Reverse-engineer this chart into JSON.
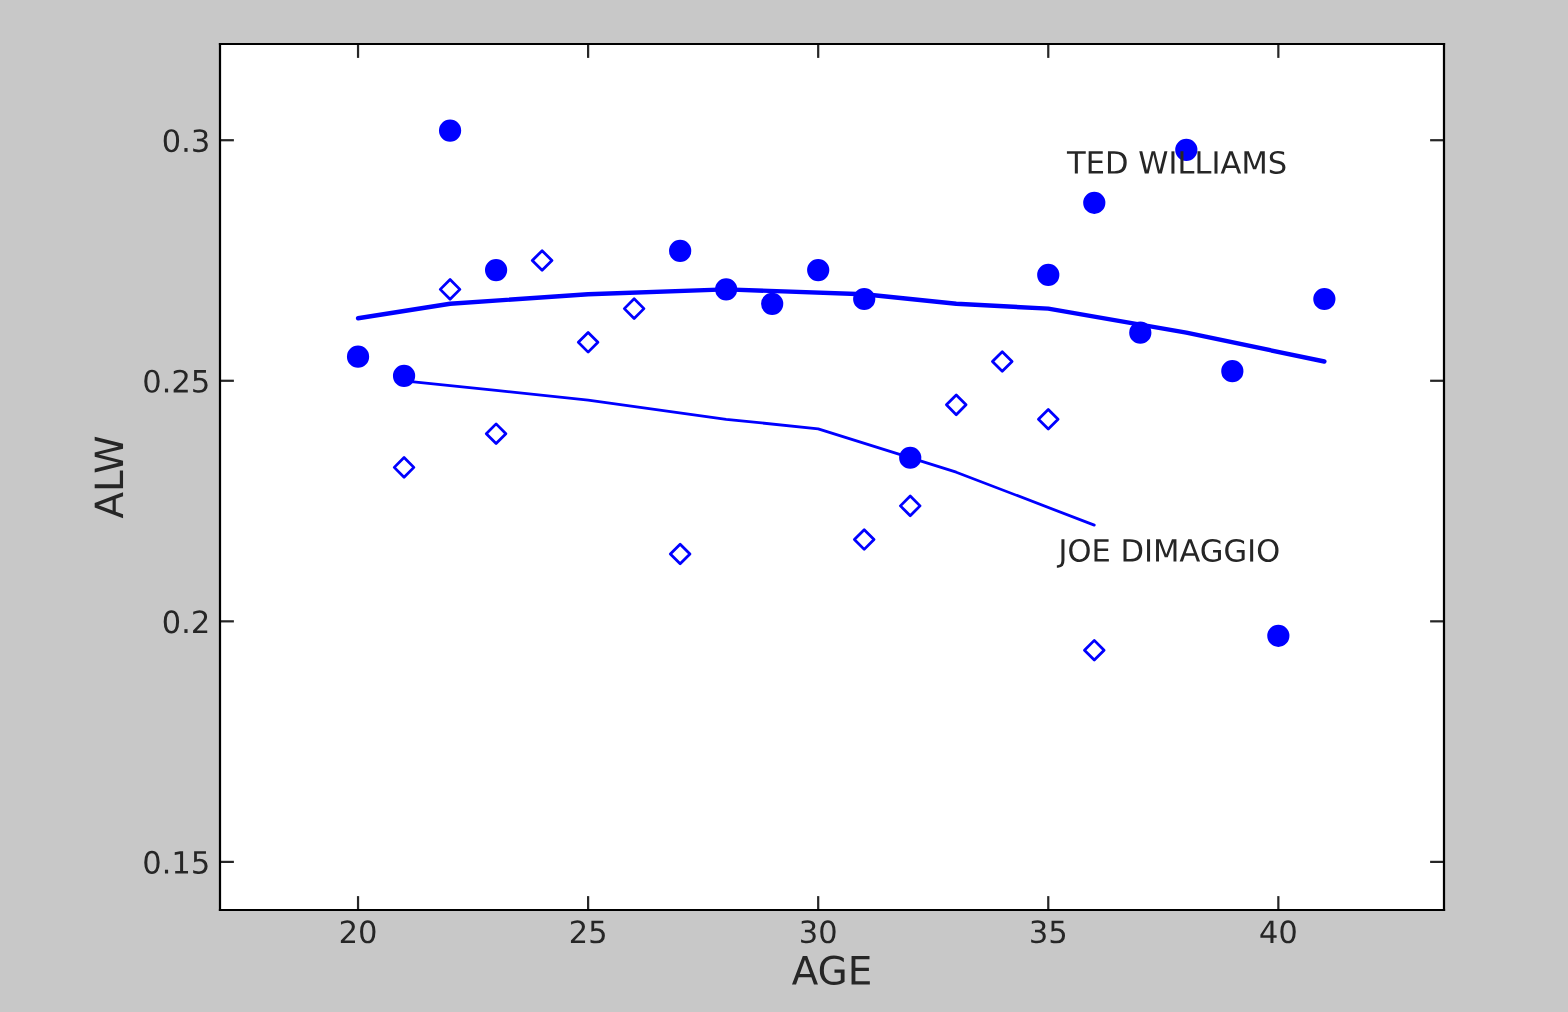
{
  "chart_data": {
    "type": "scatter",
    "xlabel": "AGE",
    "ylabel": "ALW",
    "xlim": [
      17,
      43.6
    ],
    "ylim": [
      0.14,
      0.32
    ],
    "xticks": [
      20,
      25,
      30,
      35,
      40
    ],
    "yticks": [
      0.15,
      0.2,
      0.25,
      0.3
    ],
    "grid": false,
    "legend": false,
    "series": [
      {
        "marker": "circle",
        "color": "#0000ff",
        "x": [
          20,
          21,
          22,
          23,
          27,
          28,
          29,
          30,
          31,
          32,
          35,
          36,
          37,
          38,
          39,
          40,
          41
        ],
        "values": [
          0.255,
          0.251,
          0.302,
          0.273,
          0.277,
          0.269,
          0.266,
          0.273,
          0.267,
          0.234,
          0.272,
          0.287,
          0.26,
          0.298,
          0.252,
          0.197,
          0.267
        ]
      },
      {
        "marker": "diamond",
        "color": "#0000ff",
        "x": [
          21,
          22,
          23,
          24,
          25,
          26,
          27,
          31,
          32,
          33,
          34,
          35,
          36
        ],
        "values": [
          0.232,
          0.269,
          0.239,
          0.275,
          0.258,
          0.265,
          0.214,
          0.217,
          0.224,
          0.245,
          0.254,
          0.242,
          0.194
        ]
      },
      {
        "type": "line",
        "marker": "none",
        "color": "#0000ff",
        "x": [
          20,
          22,
          25,
          28,
          31,
          33,
          35,
          38,
          41
        ],
        "values": [
          0.263,
          0.266,
          0.268,
          0.269,
          0.268,
          0.266,
          0.265,
          0.26,
          0.254
        ]
      },
      {
        "type": "line",
        "marker": "none",
        "color": "#0000ff",
        "x": [
          21,
          23,
          25,
          28,
          30,
          33,
          36
        ],
        "values": [
          0.25,
          0.248,
          0.246,
          0.242,
          0.24,
          0.231,
          0.22
        ]
      }
    ],
    "annotations": [
      "TED WILLIAMS",
      "JOE DIMAGGIO"
    ]
  }
}
